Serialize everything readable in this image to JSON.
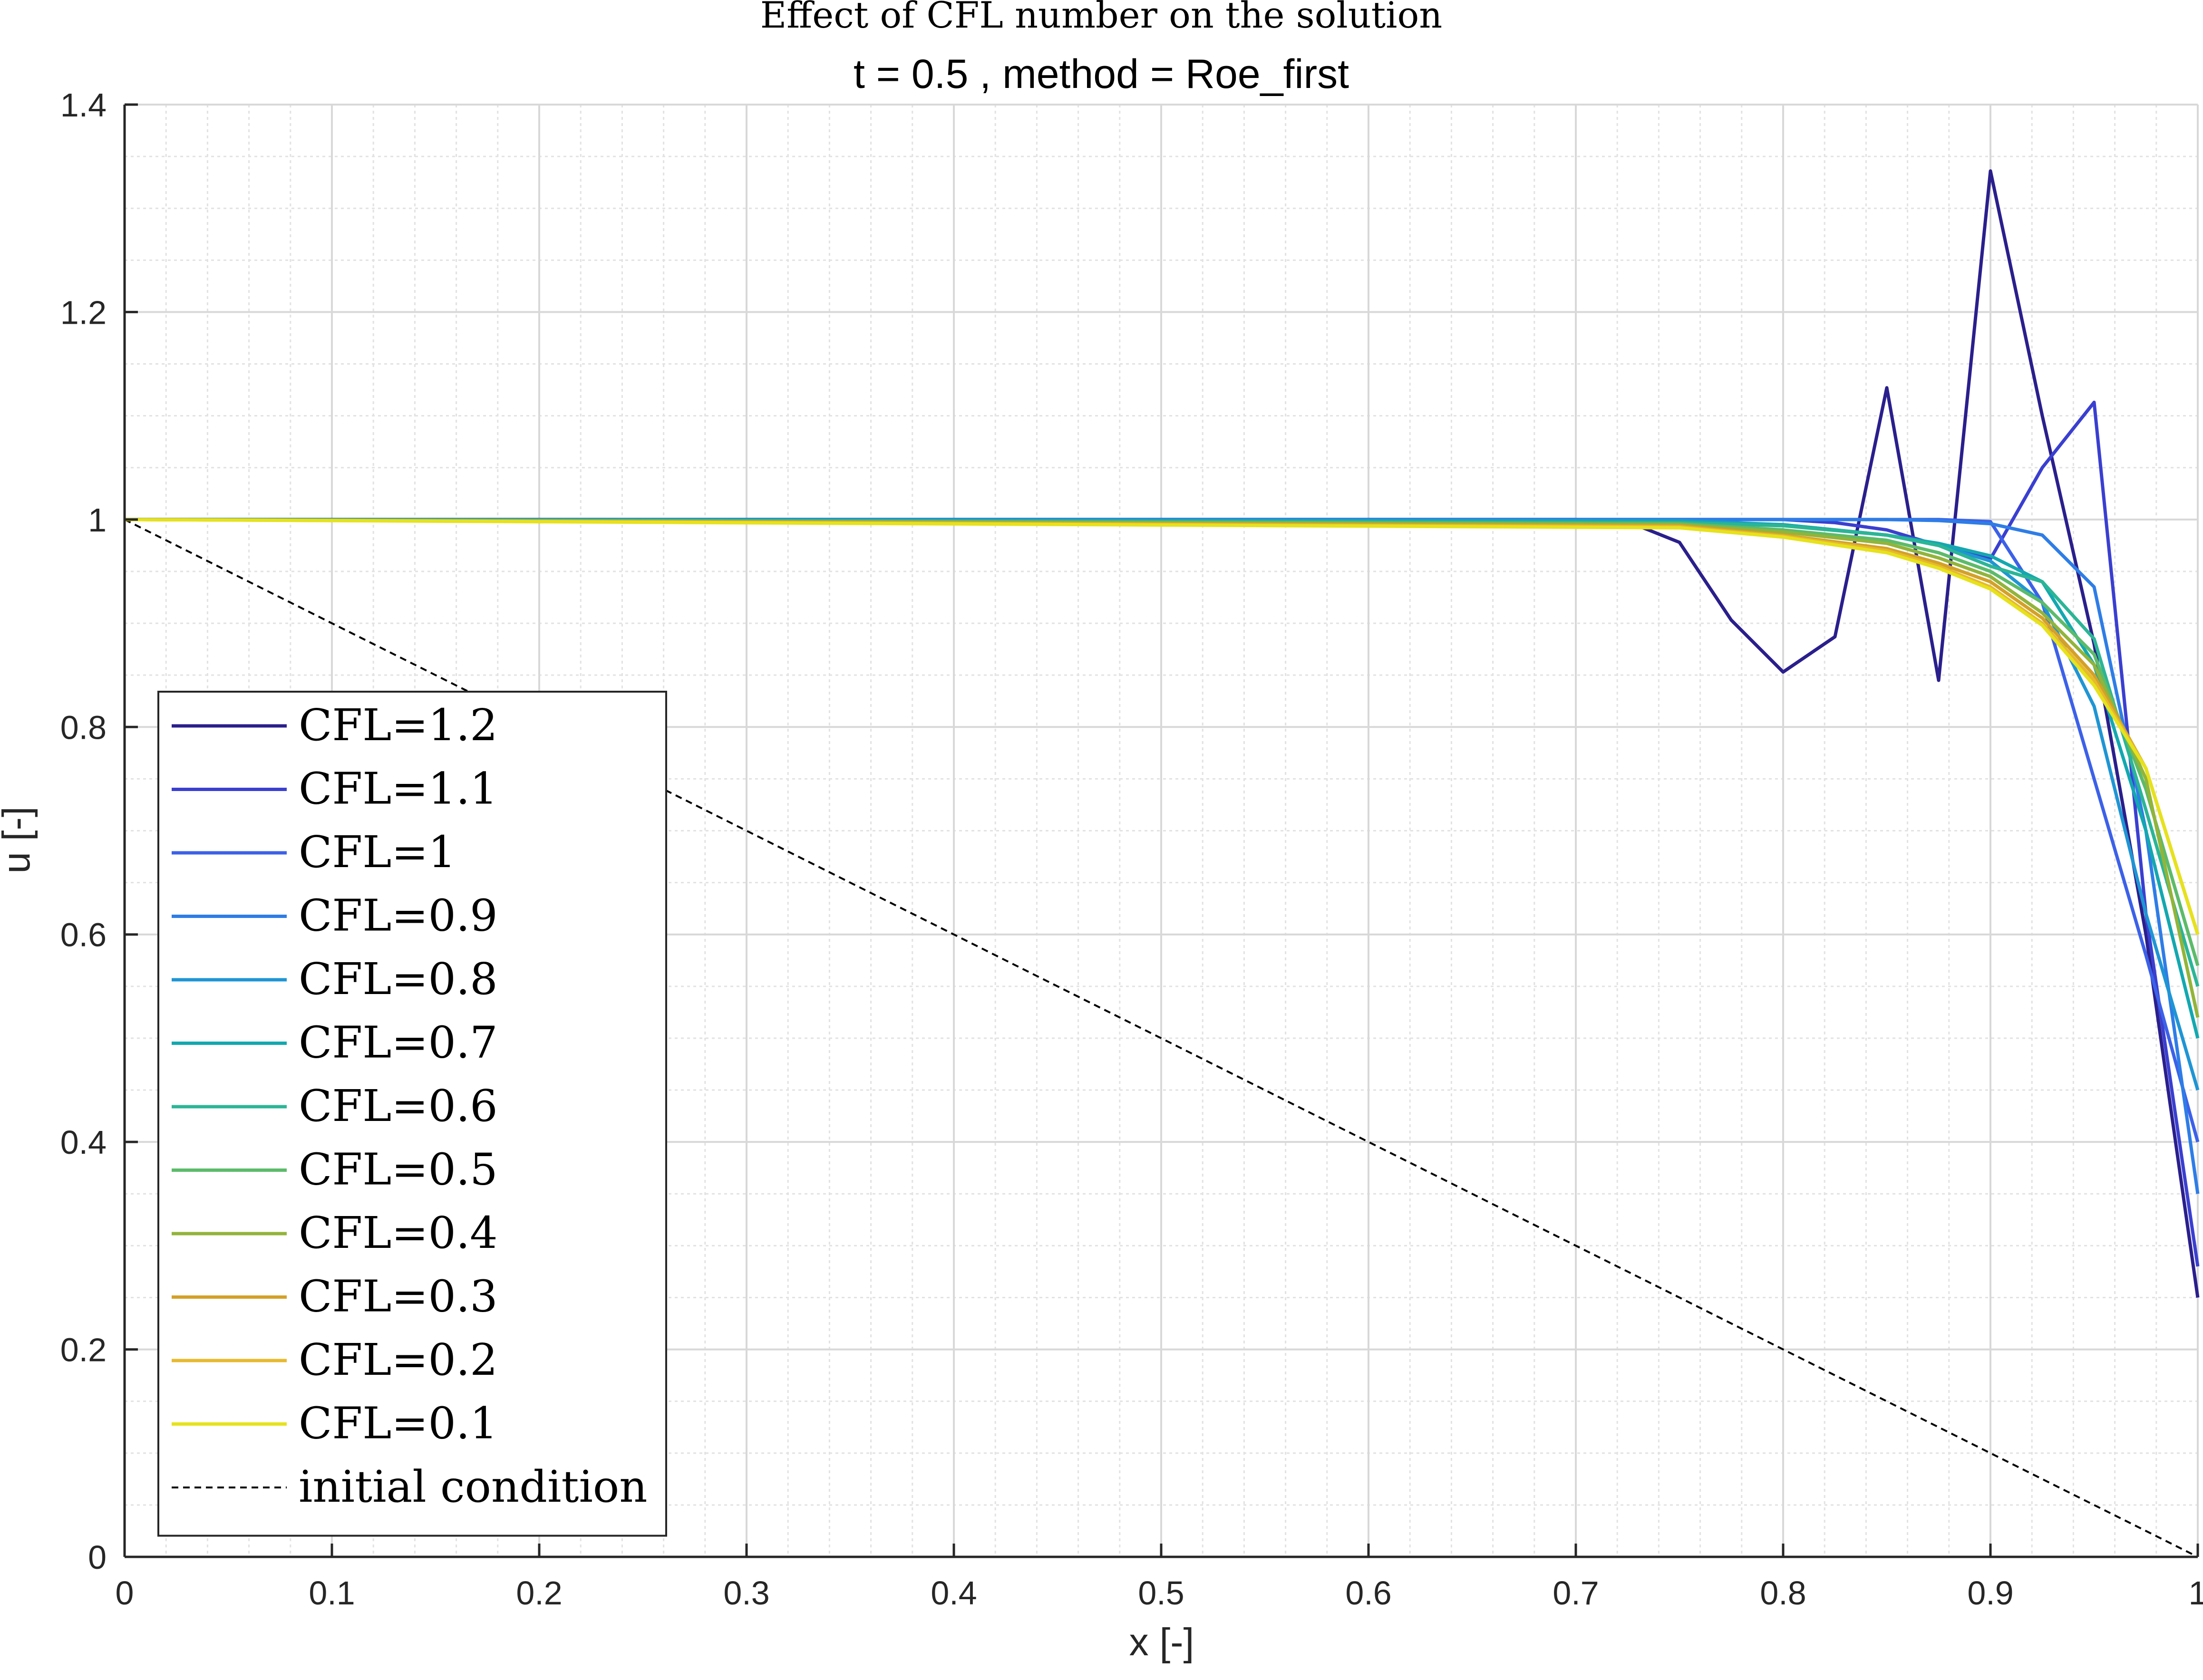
{
  "chart_data": {
    "type": "line",
    "title": "Effect of CFL number on the solution",
    "subtitle": "t = 0.5 , method = Roe_first",
    "xlabel": "x [-]",
    "ylabel": "u [-]",
    "xlim": [
      0,
      1
    ],
    "ylim": [
      0,
      1.4
    ],
    "x_ticks": [
      "0",
      "0.1",
      "0.2",
      "0.3",
      "0.4",
      "0.5",
      "0.6",
      "0.7",
      "0.8",
      "0.9",
      "1"
    ],
    "y_ticks": [
      "0",
      "0.2",
      "0.4",
      "0.6",
      "0.8",
      "1",
      "1.2",
      "1.4"
    ],
    "grid": "major and minor",
    "legend_position": "lower-left",
    "series": [
      {
        "name": "CFL=1.2",
        "color": "#2a1f8c",
        "x": [
          0,
          0.7,
          0.725,
          0.75,
          0.775,
          0.8,
          0.825,
          0.85,
          0.875,
          0.9,
          0.925,
          0.95,
          0.975,
          1
        ],
        "y": [
          1,
          1,
          0.998,
          0.978,
          0.903,
          0.853,
          0.887,
          1.127,
          0.845,
          1.336,
          1.1,
          0.88,
          0.6,
          0.25
        ]
      },
      {
        "name": "CFL=1.1",
        "color": "#3a3fd0",
        "x": [
          0,
          0.8,
          0.825,
          0.85,
          0.875,
          0.9,
          0.925,
          0.95,
          0.975,
          1
        ],
        "y": [
          1,
          1,
          0.997,
          0.99,
          0.975,
          0.962,
          1.05,
          1.113,
          0.62,
          0.28
        ]
      },
      {
        "name": "CFL=1",
        "color": "#3c61e8",
        "x": [
          0,
          0.8,
          0.85,
          0.875,
          0.9,
          0.925,
          0.95,
          0.975,
          1
        ],
        "y": [
          1,
          1,
          1,
          1,
          0.998,
          0.92,
          0.75,
          0.58,
          0.4
        ]
      },
      {
        "name": "CFL=0.9",
        "color": "#2e7de6",
        "x": [
          0,
          0.8,
          0.85,
          0.875,
          0.9,
          0.925,
          0.95,
          0.975,
          1
        ],
        "y": [
          1,
          1,
          1,
          0.999,
          0.996,
          0.985,
          0.935,
          0.7,
          0.35
        ]
      },
      {
        "name": "CFL=0.8",
        "color": "#1f95d4",
        "x": [
          0,
          0.75,
          0.8,
          0.85,
          0.875,
          0.9,
          0.925,
          0.95,
          0.975,
          1
        ],
        "y": [
          1,
          0.999,
          0.995,
          0.985,
          0.975,
          0.96,
          0.92,
          0.82,
          0.62,
          0.45
        ]
      },
      {
        "name": "CFL=0.7",
        "color": "#13a8b0",
        "x": [
          0,
          0.75,
          0.8,
          0.85,
          0.875,
          0.9,
          0.925,
          0.95,
          0.975,
          1
        ],
        "y": [
          1,
          0.998,
          0.995,
          0.985,
          0.977,
          0.965,
          0.94,
          0.86,
          0.7,
          0.5
        ]
      },
      {
        "name": "CFL=0.6",
        "color": "#2bb596",
        "x": [
          0,
          0.75,
          0.8,
          0.85,
          0.875,
          0.9,
          0.925,
          0.95,
          0.975,
          1
        ],
        "y": [
          1,
          0.997,
          0.994,
          0.985,
          0.975,
          0.955,
          0.94,
          0.885,
          0.72,
          0.55
        ]
      },
      {
        "name": "CFL=0.5",
        "color": "#5cbb6a",
        "x": [
          0,
          0.75,
          0.8,
          0.85,
          0.875,
          0.9,
          0.925,
          0.95,
          0.975,
          1
        ],
        "y": [
          1,
          0.996,
          0.99,
          0.98,
          0.968,
          0.95,
          0.92,
          0.87,
          0.74,
          0.57
        ]
      },
      {
        "name": "CFL=0.4",
        "color": "#92b43a",
        "x": [
          0,
          0.75,
          0.8,
          0.85,
          0.875,
          0.9,
          0.925,
          0.95,
          0.975,
          1
        ],
        "y": [
          1,
          0.995,
          0.988,
          0.977,
          0.963,
          0.945,
          0.91,
          0.86,
          0.75,
          0.52
        ]
      },
      {
        "name": "CFL=0.3",
        "color": "#d4a127",
        "x": [
          0,
          0.75,
          0.8,
          0.85,
          0.875,
          0.9,
          0.925,
          0.95,
          0.975,
          1
        ],
        "y": [
          1,
          0.994,
          0.985,
          0.972,
          0.958,
          0.94,
          0.905,
          0.85,
          0.76,
          0.6
        ]
      },
      {
        "name": "CFL=0.2",
        "color": "#e7b92d",
        "x": [
          0,
          0.75,
          0.8,
          0.85,
          0.875,
          0.9,
          0.925,
          0.95,
          0.975,
          1
        ],
        "y": [
          1,
          0.993,
          0.984,
          0.97,
          0.955,
          0.935,
          0.9,
          0.845,
          0.76,
          0.6
        ]
      },
      {
        "name": "CFL=0.1",
        "color": "#e6e21c",
        "x": [
          0,
          0.75,
          0.8,
          0.85,
          0.875,
          0.9,
          0.925,
          0.95,
          0.975,
          1
        ],
        "y": [
          1,
          0.992,
          0.983,
          0.968,
          0.953,
          0.933,
          0.898,
          0.84,
          0.76,
          0.6
        ]
      },
      {
        "name": "initial condition",
        "color": "#000000",
        "dashed": true,
        "x": [
          0,
          1
        ],
        "y": [
          1,
          0
        ]
      }
    ]
  }
}
